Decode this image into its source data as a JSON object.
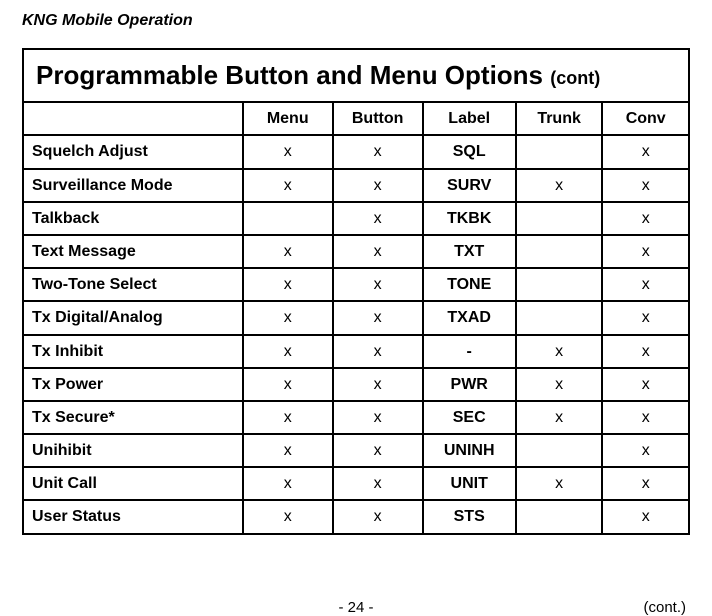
{
  "doc_header": "KNG Mobile Operation",
  "table_title": "Programmable Button and Menu Options ",
  "table_title_cont": "(cont)",
  "columns": {
    "blank": "",
    "menu": "Menu",
    "button": "Button",
    "label": "Label",
    "trunk": "Trunk",
    "conv": "Conv"
  },
  "rows": [
    {
      "name": "Squelch Adjust",
      "menu": "x",
      "button": "x",
      "label": "SQL",
      "trunk": "",
      "conv": "x"
    },
    {
      "name": "Surveillance Mode",
      "menu": "x",
      "button": "x",
      "label": "SURV",
      "trunk": "x",
      "conv": "x"
    },
    {
      "name": "Talkback",
      "menu": "",
      "button": "x",
      "label": "TKBK",
      "trunk": "",
      "conv": "x"
    },
    {
      "name": "Text Message",
      "menu": "x",
      "button": "x",
      "label": "TXT",
      "trunk": "",
      "conv": "x"
    },
    {
      "name": "Two-Tone Select",
      "menu": "x",
      "button": "x",
      "label": "TONE",
      "trunk": "",
      "conv": "x"
    },
    {
      "name": "Tx Digital/Analog",
      "menu": "x",
      "button": "x",
      "label": "TXAD",
      "trunk": "",
      "conv": "x"
    },
    {
      "name": "Tx Inhibit",
      "menu": "x",
      "button": "x",
      "label": "-",
      "trunk": "x",
      "conv": "x"
    },
    {
      "name": "Tx Power",
      "menu": "x",
      "button": "x",
      "label": "PWR",
      "trunk": "x",
      "conv": "x"
    },
    {
      "name": "Tx Secure*",
      "menu": "x",
      "button": "x",
      "label": "SEC",
      "trunk": "x",
      "conv": "x"
    },
    {
      "name": "Unihibit",
      "menu": "x",
      "button": "x",
      "label": "UNINH",
      "trunk": "",
      "conv": "x"
    },
    {
      "name": "Unit Call",
      "menu": "x",
      "button": "x",
      "label": "UNIT",
      "trunk": "x",
      "conv": "x"
    },
    {
      "name": "User Status",
      "menu": "x",
      "button": "x",
      "label": "STS",
      "trunk": "",
      "conv": "x"
    }
  ],
  "page_number": "- 24 -",
  "cont_label": "(cont.)",
  "col_widths": {
    "name": "33%",
    "menu": "13.5%",
    "button": "13.5%",
    "label": "14%",
    "trunk": "13%",
    "conv": "13%"
  }
}
